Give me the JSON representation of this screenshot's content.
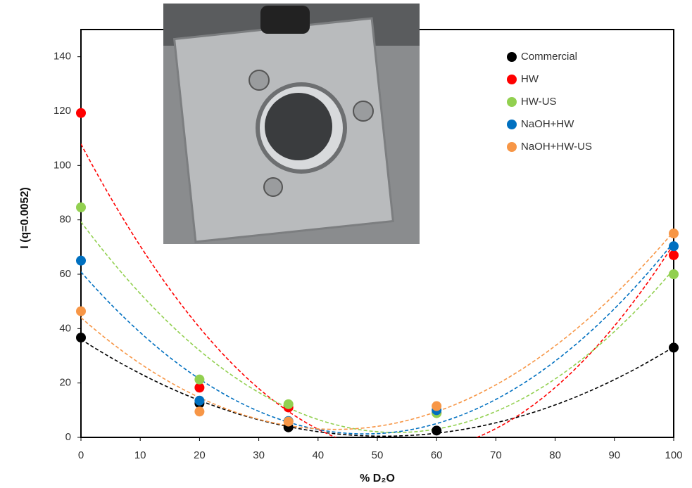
{
  "chart_data": {
    "type": "scatter",
    "x_label": "% D₂O",
    "y_label": "I (q=0.0052)",
    "x": [
      0,
      20,
      35,
      60,
      100
    ],
    "series": [
      {
        "name": "Commercial",
        "color": "#000000",
        "values": [
          36.7,
          12.5,
          3.7,
          2.5,
          33
        ]
      },
      {
        "name": "HW",
        "color": "#ff0000",
        "values": [
          119.3,
          18.3,
          11,
          9,
          67
        ]
      },
      {
        "name": "HW-US",
        "color": "#92d050",
        "values": [
          84.6,
          21.3,
          12.2,
          8.9,
          60
        ]
      },
      {
        "name": "NaOH+HW",
        "color": "#0070c0",
        "values": [
          65,
          13.5,
          6,
          10,
          70.3
        ]
      },
      {
        "name": "NaOH+HW-US",
        "color": "#f79646",
        "values": [
          46.4,
          9.5,
          5.8,
          11.5,
          75
        ]
      }
    ],
    "trendline": "polynomial-2",
    "xlim": [
      0,
      100
    ],
    "xticks": [
      0,
      10,
      20,
      30,
      40,
      50,
      60,
      70,
      80,
      90,
      100
    ],
    "ylim": [
      0,
      150
    ],
    "yticks": [
      0,
      20,
      40,
      60,
      80,
      100,
      120,
      140
    ],
    "grid": false,
    "legend": "upper right"
  }
}
